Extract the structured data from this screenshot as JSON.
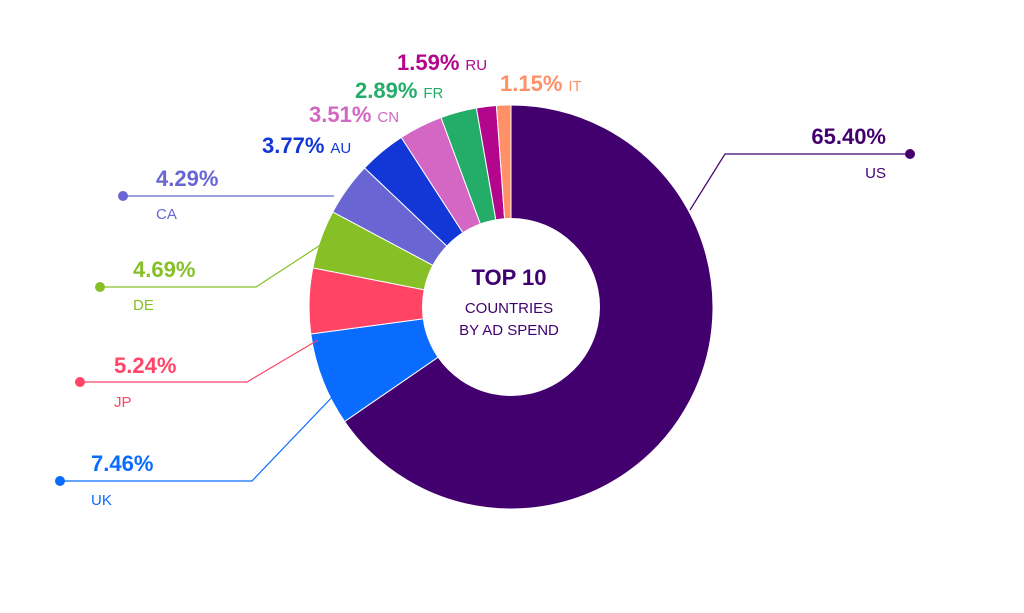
{
  "chart_data": {
    "type": "pie",
    "donut": true,
    "center_title": "TOP 10",
    "center_subtitle_line1": "COUNTRIES",
    "center_subtitle_line2": "BY AD SPEND",
    "slices": [
      {
        "label": "US",
        "value": 65.4,
        "value_label": "65.40%",
        "color": "#42006f"
      },
      {
        "label": "UK",
        "value": 7.46,
        "value_label": "7.46%",
        "color": "#0a6cff"
      },
      {
        "label": "JP",
        "value": 5.24,
        "value_label": "5.24%",
        "color": "#ff4466"
      },
      {
        "label": "DE",
        "value": 4.69,
        "value_label": "4.69%",
        "color": "#86bf26"
      },
      {
        "label": "CA",
        "value": 4.29,
        "value_label": "4.29%",
        "color": "#6966d4"
      },
      {
        "label": "AU",
        "value": 3.77,
        "value_label": "3.77%",
        "color": "#1337d6"
      },
      {
        "label": "CN",
        "value": 3.51,
        "value_label": "3.51%",
        "color": "#d466c4"
      },
      {
        "label": "FR",
        "value": 2.89,
        "value_label": "2.89%",
        "color": "#23ad68"
      },
      {
        "label": "RU",
        "value": 1.59,
        "value_label": "1.59%",
        "color": "#b3068c"
      },
      {
        "label": "IT",
        "value": 1.15,
        "value_label": "1.15%",
        "color": "#ff9068"
      }
    ]
  }
}
